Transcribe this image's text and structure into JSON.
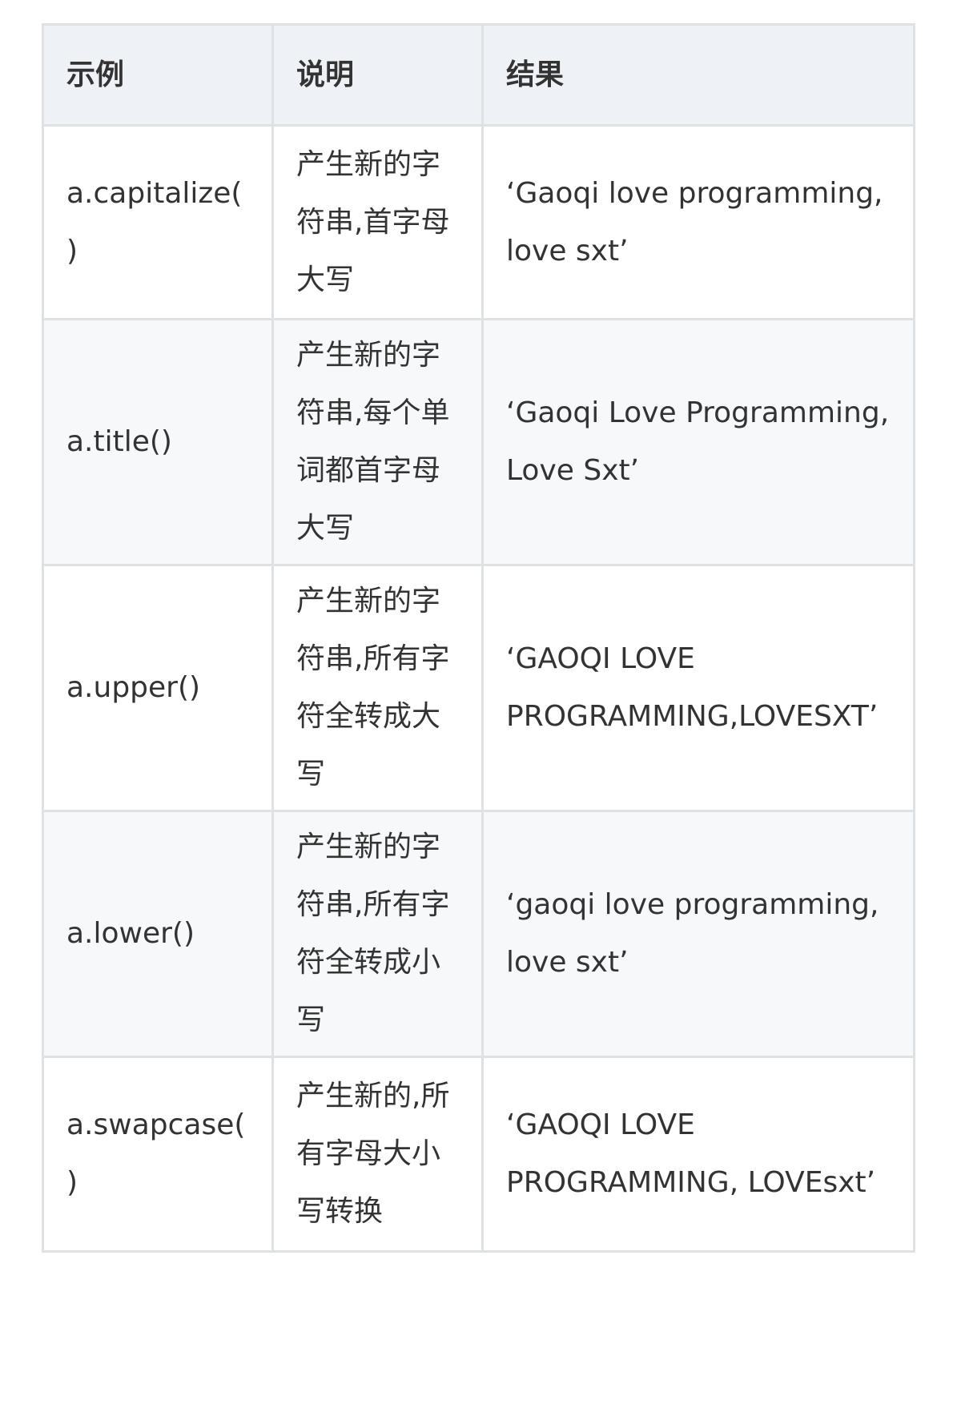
{
  "table": {
    "headers": [
      "示例",
      "说明",
      "结果"
    ],
    "rows": [
      {
        "example": "a.capitalize()",
        "description": "产生新的字符串,首字母大写",
        "result": "‘Gaoqi love programming, love sxt’"
      },
      {
        "example": "a.title()",
        "description": "产生新的字符串,每个单词都首字母大写",
        "result": "‘Gaoqi Love Programming, Love Sxt’"
      },
      {
        "example": "a.upper()",
        "description": "产生新的字符串,所有字符全转成大写",
        "result": "‘GAOQI LOVE PROGRAMMING,LOVESXT’"
      },
      {
        "example": "a.lower()",
        "description": "产生新的字符串,所有字符全转成小写",
        "result": "‘gaoqi love programming, love sxt’"
      },
      {
        "example": "a.swapcase()",
        "description": "产生新的,所有字母大小写转换",
        "result": "‘GAOQI LOVE PROGRAMMING, LOVEsxt’"
      }
    ]
  }
}
